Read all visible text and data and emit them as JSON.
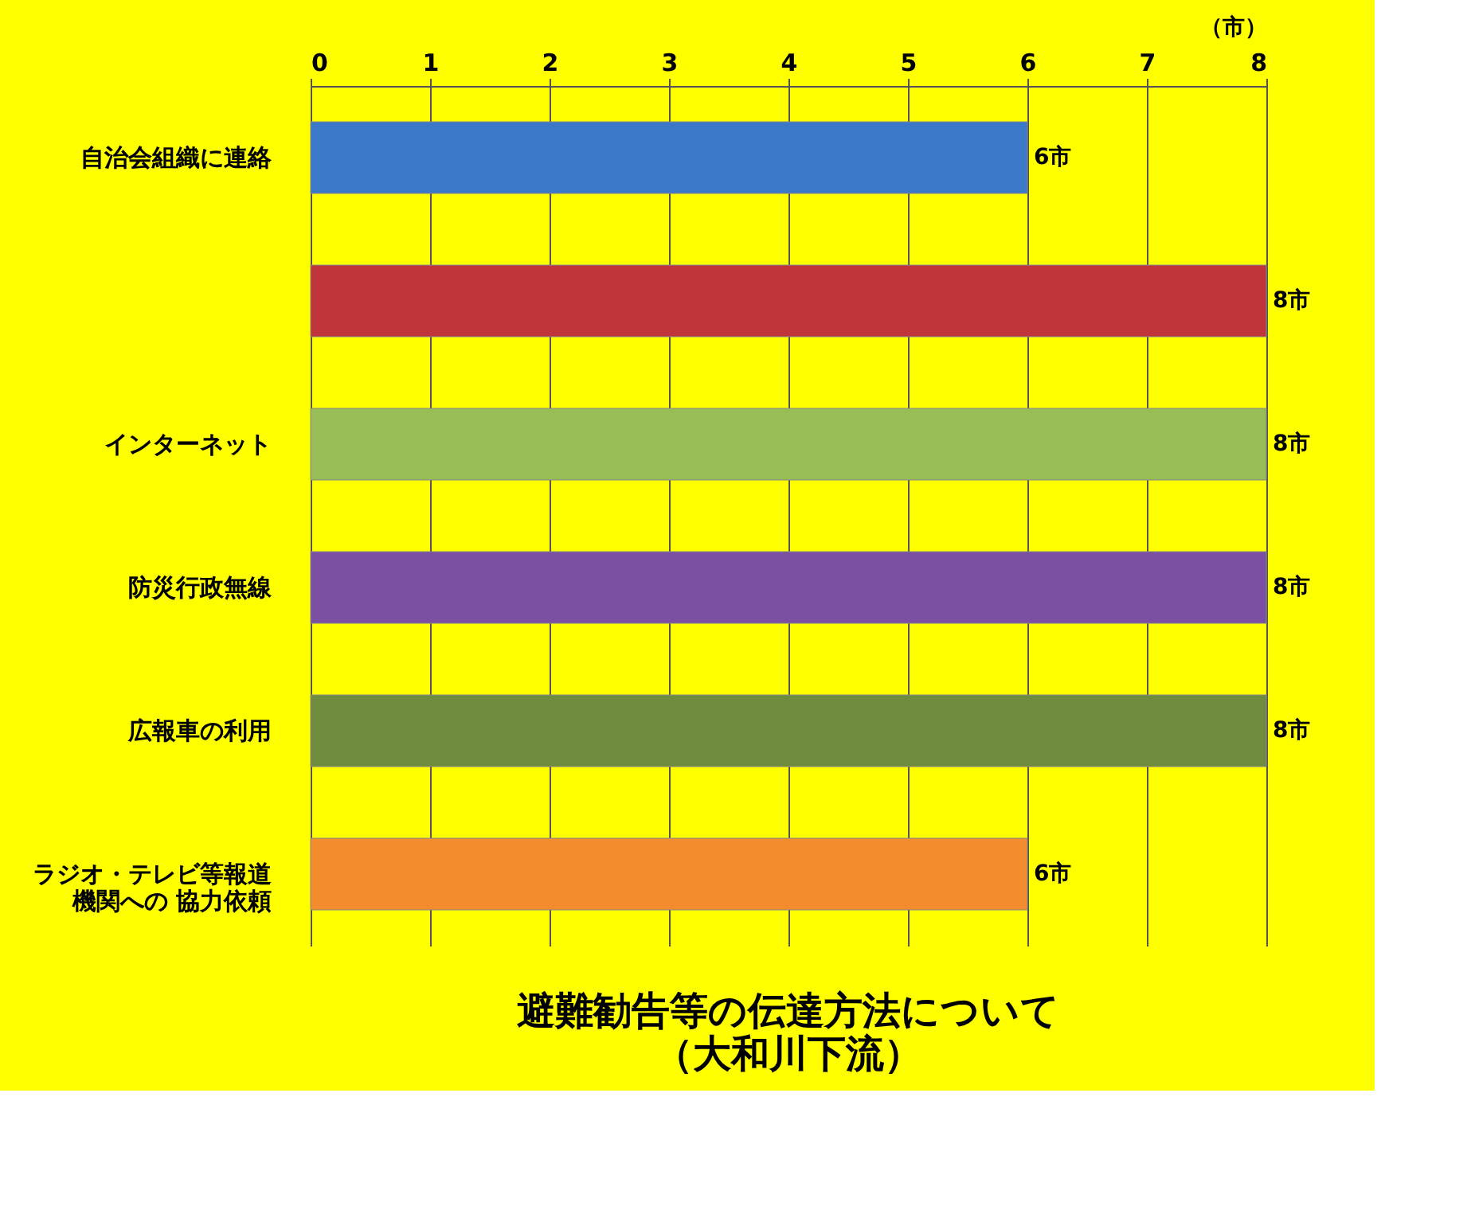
{
  "chart_data": {
    "type": "bar",
    "orientation": "horizontal",
    "title": "避難勧告等の伝達方法について",
    "subtitle": "（大和川下流）",
    "xlabel": "（市）",
    "categories": [
      "自治会組織に連絡",
      null,
      "インターネット",
      "防災行政無線",
      "広報車の利用",
      "ラジオ・テレビ等報道機関への 協力依頼"
    ],
    "values": [
      6,
      8,
      8,
      8,
      8,
      6
    ],
    "colors": [
      "#3b78c8",
      "#c0343c",
      "#98bc56",
      "#7b4fa2",
      "#6e8b3e",
      "#f38b2f"
    ],
    "value_labels": [
      "6市",
      "8市",
      "8市",
      "8市",
      "8市",
      "6市"
    ],
    "xlim": [
      0,
      8
    ],
    "xticks": [
      0,
      1,
      2,
      3,
      4,
      5,
      6,
      7,
      8
    ],
    "grid": "x"
  }
}
